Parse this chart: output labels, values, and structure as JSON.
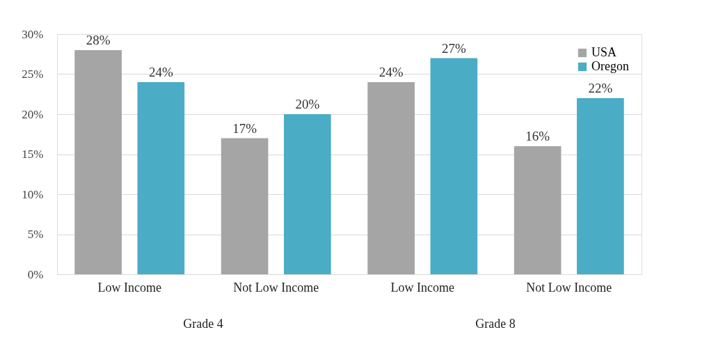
{
  "chart_data": {
    "type": "bar",
    "categories": [
      "Low Income",
      "Not Low Income",
      "Low Income",
      "Not Low Income"
    ],
    "series": [
      {
        "name": "USA",
        "color": "#a5a5a5",
        "values": [
          28,
          17,
          24,
          16
        ],
        "value_labels": [
          "28%",
          "17%",
          "24%",
          "16%"
        ]
      },
      {
        "name": "Oregon",
        "color": "#4bacc6",
        "values": [
          24,
          20,
          27,
          22
        ],
        "value_labels": [
          "24%",
          "20%",
          "27%",
          "22%"
        ]
      }
    ],
    "ylim": [
      0,
      30
    ],
    "yticks": [
      {
        "value": 0,
        "label": "0%"
      },
      {
        "value": 5,
        "label": "5%"
      },
      {
        "value": 10,
        "label": "10%"
      },
      {
        "value": 15,
        "label": "15%"
      },
      {
        "value": 20,
        "label": "20%"
      },
      {
        "value": 25,
        "label": "25%"
      },
      {
        "value": 30,
        "label": "30%"
      }
    ],
    "grid": "y",
    "legend": "top right",
    "annotations": [
      "Grade 4",
      "Grade 8"
    ]
  }
}
